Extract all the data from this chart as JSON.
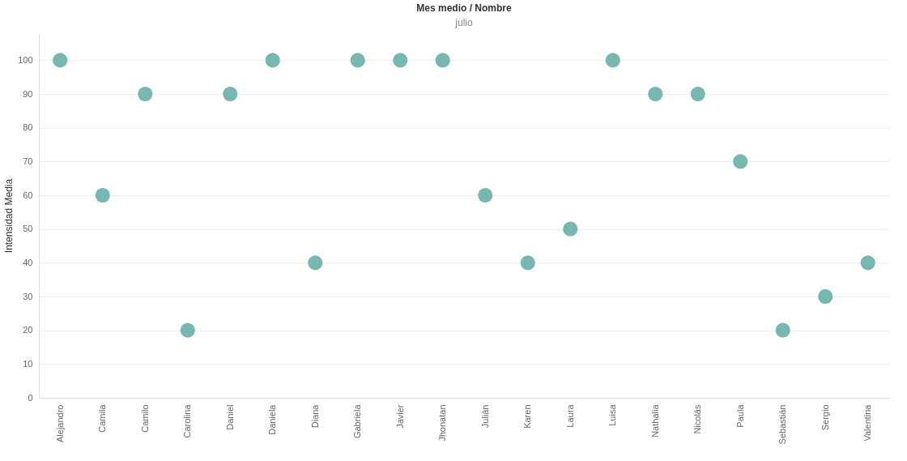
{
  "chart_data": {
    "type": "scatter",
    "title": "Mes medio / Nombre",
    "subtitle": "julio",
    "ylabel": "Intensidad Media",
    "categories": [
      "Alejandro",
      "Camila",
      "Camilo",
      "Carolina",
      "Daniel",
      "Daniela",
      "Diana",
      "Gabriela",
      "Javier",
      "Jhonatan",
      "Julián",
      "Karen",
      "Laura",
      "Luisa",
      "Nathalia",
      "Nicolás",
      "Paula",
      "Sebastián",
      "Sergio",
      "Valentina"
    ],
    "series": [
      {
        "color": "#76b7b2",
        "values": [
          100,
          60,
          90,
          20,
          90,
          100,
          40,
          100,
          100,
          100,
          60,
          40,
          50,
          100,
          90,
          90,
          70,
          20,
          30,
          40
        ]
      }
    ],
    "ylim": [
      0,
      108
    ],
    "yticks": [
      0,
      10,
      20,
      30,
      40,
      50,
      60,
      70,
      80,
      90,
      100
    ],
    "grid": "y",
    "marker": "circle"
  }
}
